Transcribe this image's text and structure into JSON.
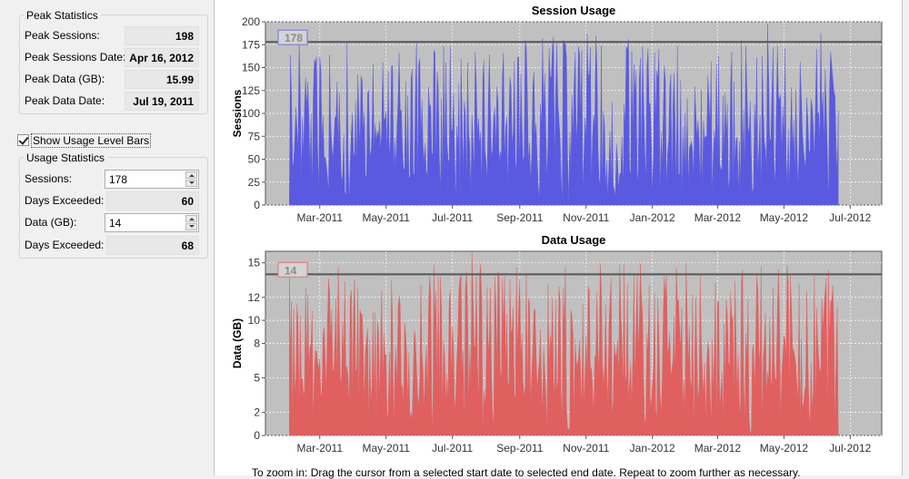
{
  "peak_statistics": {
    "title": "Peak Statistics",
    "rows": [
      {
        "label": "Peak Sessions:",
        "value": "198"
      },
      {
        "label": "Peak Sessions Date:",
        "value": "Apr 16, 2012"
      },
      {
        "label": "Peak Data (GB):",
        "value": "15.99"
      },
      {
        "label": "Peak Data Date:",
        "value": "Jul 19, 2011"
      }
    ]
  },
  "show_usage_level_bars": {
    "label": "Show Usage Level Bars",
    "checked": true
  },
  "usage_statistics": {
    "title": "Usage Statistics",
    "sessions": {
      "label": "Sessions:",
      "value": "178"
    },
    "sessions_days_exceeded": {
      "label": "Days Exceeded:",
      "value": "60"
    },
    "data": {
      "label": "Data (GB):",
      "value": "14"
    },
    "data_days_exceeded": {
      "label": "Days Exceeded:",
      "value": "68"
    }
  },
  "footer_note": "To zoom in: Drag the cursor from a selected start date to selected end date. Repeat to zoom further as necessary.",
  "colors": {
    "session_fill": "#5a5ae0",
    "data_fill": "#e06060",
    "plot_background": "#c0c0c0",
    "level_line": "#555555"
  },
  "chart_data": [
    {
      "type": "area",
      "title": "Session Usage",
      "xlabel": "",
      "ylabel": "Sessions",
      "x_range": [
        "2011-01-10",
        "2012-07-30"
      ],
      "x_ticks": [
        "Mar-2011",
        "May-2011",
        "Jul-2011",
        "Sep-2011",
        "Nov-2011",
        "Jan-2012",
        "Mar-2012",
        "May-2012",
        "Jul-2012"
      ],
      "ylim": [
        0,
        200
      ],
      "y_ticks": [
        0,
        25,
        50,
        75,
        100,
        125,
        150,
        175,
        200
      ],
      "grid": true,
      "level": 178,
      "level_label": "178",
      "series_start": "2011-02-01",
      "series_end": "2012-06-20",
      "peak": {
        "date": "2012-04-16",
        "value": 198
      },
      "color": "#5a5ae0"
    },
    {
      "type": "area",
      "title": "Data Usage",
      "xlabel": "",
      "ylabel": "Data (GB)",
      "x_range": [
        "2011-01-10",
        "2012-07-30"
      ],
      "x_ticks": [
        "Mar-2011",
        "May-2011",
        "Jul-2011",
        "Sep-2011",
        "Nov-2011",
        "Jan-2012",
        "Mar-2012",
        "May-2012",
        "Jul-2012"
      ],
      "ylim": [
        0,
        16
      ],
      "y_ticks": [
        0,
        2,
        5,
        8,
        10,
        12,
        15
      ],
      "grid": true,
      "level": 14,
      "level_label": "14",
      "series_start": "2011-02-01",
      "series_end": "2012-06-20",
      "peak": {
        "date": "2011-07-19",
        "value": 15.99
      },
      "color": "#e06060"
    }
  ]
}
